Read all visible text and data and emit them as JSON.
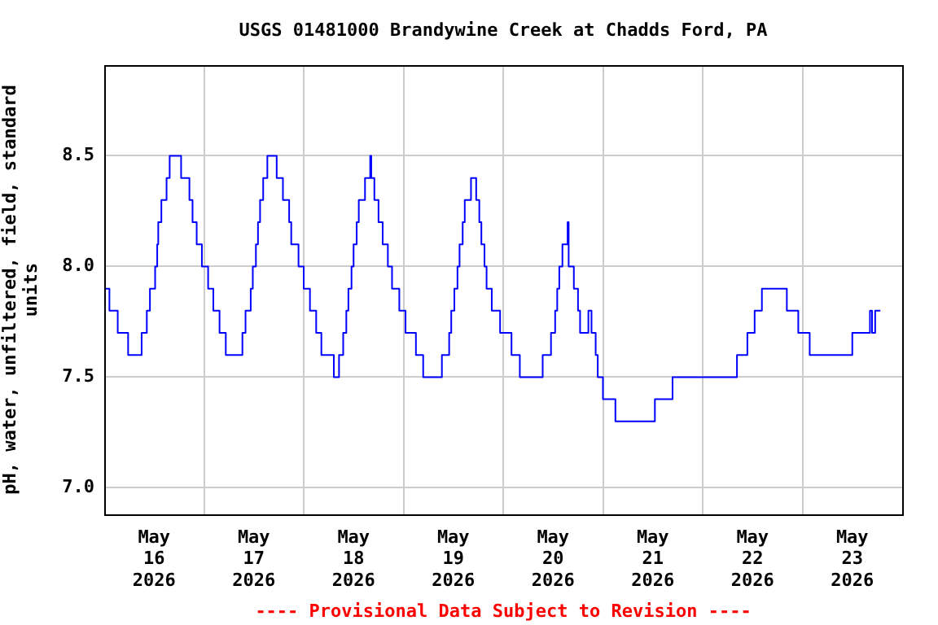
{
  "chart_data": {
    "type": "step",
    "title": "USGS 01481000 Brandywine Creek at Chadds Ford, PA",
    "ylabel": "pH, water, unfiltered, field, standard units",
    "annotations": [
      "---- Provisional Data Subject to Revision ----"
    ],
    "x": [
      "2026-05-16T00:00",
      "2026-05-16T01:15",
      "2026-05-16T03:15",
      "2026-05-16T05:45",
      "2026-05-16T09:00",
      "2026-05-16T10:15",
      "2026-05-16T11:00",
      "2026-05-16T12:15",
      "2026-05-16T12:45",
      "2026-05-16T13:00",
      "2026-05-16T13:45",
      "2026-05-16T15:00",
      "2026-05-16T15:45",
      "2026-05-16T18:30",
      "2026-05-16T20:30",
      "2026-05-16T21:15",
      "2026-05-16T22:15",
      "2026-05-16T23:30",
      "2026-05-17T01:00",
      "2026-05-17T02:15",
      "2026-05-17T03:45",
      "2026-05-17T05:15",
      "2026-05-17T09:15",
      "2026-05-17T10:00",
      "2026-05-17T11:15",
      "2026-05-17T11:45",
      "2026-05-17T12:30",
      "2026-05-17T13:00",
      "2026-05-17T13:30",
      "2026-05-17T14:15",
      "2026-05-17T15:15",
      "2026-05-17T17:30",
      "2026-05-17T19:00",
      "2026-05-17T20:30",
      "2026-05-17T21:00",
      "2026-05-17T22:45",
      "2026-05-18T00:00",
      "2026-05-18T01:30",
      "2026-05-18T03:00",
      "2026-05-18T04:15",
      "2026-05-18T07:15",
      "2026-05-18T08:30",
      "2026-05-18T09:30",
      "2026-05-18T10:15",
      "2026-05-18T10:45",
      "2026-05-18T11:30",
      "2026-05-18T12:00",
      "2026-05-18T12:45",
      "2026-05-18T13:15",
      "2026-05-18T14:45",
      "2026-05-18T16:00",
      "2026-05-18T16:15",
      "2026-05-18T17:00",
      "2026-05-18T18:00",
      "2026-05-18T19:00",
      "2026-05-18T20:15",
      "2026-05-18T21:15",
      "2026-05-18T23:00",
      "2026-05-19T00:30",
      "2026-05-19T03:00",
      "2026-05-19T04:45",
      "2026-05-19T09:15",
      "2026-05-19T11:00",
      "2026-05-19T11:30",
      "2026-05-19T12:15",
      "2026-05-19T13:00",
      "2026-05-19T13:30",
      "2026-05-19T14:15",
      "2026-05-19T14:45",
      "2026-05-19T16:15",
      "2026-05-19T17:30",
      "2026-05-19T18:15",
      "2026-05-19T18:45",
      "2026-05-19T19:30",
      "2026-05-19T20:00",
      "2026-05-19T21:15",
      "2026-05-19T23:15",
      "2026-05-20T02:00",
      "2026-05-20T04:00",
      "2026-05-20T09:30",
      "2026-05-20T11:30",
      "2026-05-20T12:30",
      "2026-05-20T13:00",
      "2026-05-20T13:30",
      "2026-05-20T14:15",
      "2026-05-20T15:30",
      "2026-05-20T15:45",
      "2026-05-20T17:00",
      "2026-05-20T18:00",
      "2026-05-20T18:30",
      "2026-05-20T20:30",
      "2026-05-20T21:15",
      "2026-05-20T22:15",
      "2026-05-20T22:45",
      "2026-05-21T00:00",
      "2026-05-21T03:00",
      "2026-05-21T12:30",
      "2026-05-21T16:45",
      "2026-05-22T08:15",
      "2026-05-22T10:45",
      "2026-05-22T12:30",
      "2026-05-22T14:15",
      "2026-05-22T20:15",
      "2026-05-22T23:00",
      "2026-05-23T01:45",
      "2026-05-23T12:00",
      "2026-05-23T16:15",
      "2026-05-23T16:45",
      "2026-05-23T17:30",
      "2026-05-23T18:45"
    ],
    "series": [
      {
        "color": "#0000ff",
        "values": [
          7.9,
          7.8,
          7.7,
          7.6,
          7.7,
          7.8,
          7.9,
          8.0,
          8.1,
          8.2,
          8.3,
          8.4,
          8.5,
          8.4,
          8.3,
          8.2,
          8.1,
          8.0,
          7.9,
          7.8,
          7.7,
          7.6,
          7.7,
          7.8,
          7.9,
          8.0,
          8.1,
          8.2,
          8.3,
          8.4,
          8.5,
          8.4,
          8.3,
          8.2,
          8.1,
          8.0,
          7.9,
          7.8,
          7.7,
          7.6,
          7.5,
          7.6,
          7.7,
          7.8,
          7.9,
          8.0,
          8.1,
          8.2,
          8.3,
          8.4,
          8.5,
          8.4,
          8.3,
          8.2,
          8.1,
          8.0,
          7.9,
          7.8,
          7.7,
          7.6,
          7.5,
          7.6,
          7.7,
          7.8,
          7.9,
          8.0,
          8.1,
          8.2,
          8.3,
          8.4,
          8.3,
          8.2,
          8.1,
          8.0,
          7.9,
          7.8,
          7.7,
          7.6,
          7.5,
          7.6,
          7.7,
          7.8,
          7.9,
          8.0,
          8.1,
          8.2,
          8.0,
          7.9,
          7.8,
          7.7,
          7.8,
          7.7,
          7.6,
          7.5,
          7.4,
          7.3,
          7.4,
          7.5,
          7.6,
          7.7,
          7.8,
          7.9,
          7.8,
          7.7,
          7.6,
          7.7,
          7.8,
          7.7,
          7.8,
          7.8
        ]
      }
    ],
    "xlim": [
      "2026-05-16T00:00",
      "2026-05-24T00:00"
    ],
    "xticks": [
      {
        "value": "2026-05-16T12:00",
        "label": "May\n16\n2026"
      },
      {
        "value": "2026-05-17T00:00",
        "label": null
      },
      {
        "value": "2026-05-17T12:00",
        "label": "May\n17\n2026"
      },
      {
        "value": "2026-05-18T00:00",
        "label": null
      },
      {
        "value": "2026-05-18T12:00",
        "label": "May\n18\n2026"
      },
      {
        "value": "2026-05-19T00:00",
        "label": null
      },
      {
        "value": "2026-05-19T12:00",
        "label": "May\n19\n2026"
      },
      {
        "value": "2026-05-20T00:00",
        "label": null
      },
      {
        "value": "2026-05-20T12:00",
        "label": "May\n20\n2026"
      },
      {
        "value": "2026-05-21T00:00",
        "label": null
      },
      {
        "value": "2026-05-21T12:00",
        "label": "May\n21\n2026"
      },
      {
        "value": "2026-05-22T00:00",
        "label": null
      },
      {
        "value": "2026-05-22T12:00",
        "label": "May\n22\n2026"
      },
      {
        "value": "2026-05-23T00:00",
        "label": null
      },
      {
        "value": "2026-05-23T12:00",
        "label": "May\n23\n2026"
      }
    ],
    "ylim": [
      6.88,
      8.91
    ],
    "yticks": [
      {
        "value": 7,
        "label": "7.0"
      },
      {
        "value": 7.5,
        "label": "7.5"
      },
      {
        "value": 8,
        "label": "8.0"
      },
      {
        "value": 8.5,
        "label": "8.5"
      }
    ],
    "grid": true,
    "legend": false
  }
}
